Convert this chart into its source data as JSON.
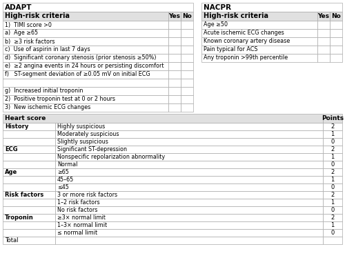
{
  "adapt_title": "ADAPT",
  "adapt_header": "High-risk criteria",
  "adapt_rows": [
    "1)  TIMI score >0",
    "a)  Age ≥65",
    "b)  ≥3 risk factors",
    "c)  Use of aspirin in last 7 days",
    "d)  Significant coronary stenosis (prior stenosis ≥50%)",
    "e)  ≥2 angina events in 24 hours or persisting discomfort",
    "f)   ST-segment deviation of ≥0.05 mV on initial ECG",
    "",
    "g)  Increased initial troponin",
    "2)  Positive troponin test at 0 or 2 hours",
    "3)  New ischemic ECG changes"
  ],
  "nacpr_title": "NACPR",
  "nacpr_header": "High-risk criteria",
  "nacpr_rows": [
    "Age ≥50",
    "Acute ischemic ECG changes",
    "Known coronary artery disease",
    "Pain typical for ACS",
    "Any troponin >99th percentile"
  ],
  "heart_title": "Heart score",
  "heart_col_points": "Points",
  "heart_rows": [
    [
      "History",
      "Highly suspicious",
      "2"
    ],
    [
      "",
      "Moderately suspicious",
      "1"
    ],
    [
      "",
      "Slightly suspicious",
      "0"
    ],
    [
      "ECG",
      "Significant ST-depression",
      "2"
    ],
    [
      "",
      "Nonspecific repolarization abnormality",
      "1"
    ],
    [
      "",
      "Normal",
      "0"
    ],
    [
      "Age",
      "≥65",
      "2"
    ],
    [
      "",
      "45–65",
      "1"
    ],
    [
      "",
      "≤45",
      "0"
    ],
    [
      "Risk factors",
      "3 or more risk factors",
      "2"
    ],
    [
      "",
      "1–2 risk factors",
      "1"
    ],
    [
      "",
      "No risk factors",
      "0"
    ],
    [
      "Troponin",
      "≥3× normal limit",
      "2"
    ],
    [
      "",
      "1–3× normal limit",
      "1"
    ],
    [
      "",
      "≤ normal limit",
      "0"
    ],
    [
      "Total",
      "",
      ""
    ]
  ],
  "heart_bold_cats": [
    "History",
    "ECG",
    "Age",
    "Risk factors",
    "Troponin"
  ],
  "bg_color": "#ffffff",
  "header_bg": "#e0e0e0",
  "line_color": "#aaaaaa",
  "text_color": "#000000"
}
